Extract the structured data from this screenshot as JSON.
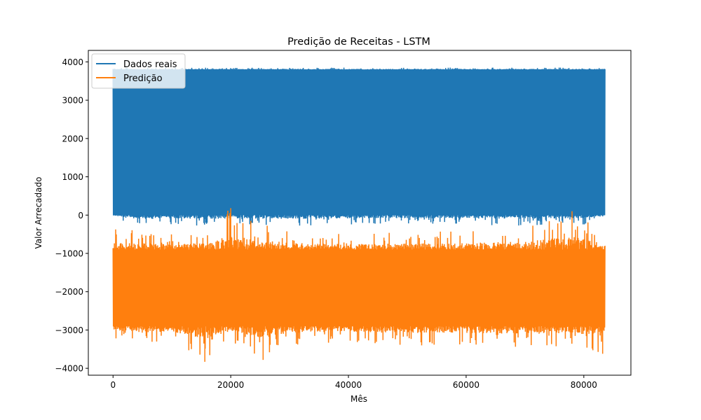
{
  "chart_data": {
    "type": "line",
    "title": "Predição de Receitas - LSTM",
    "xlabel": "Mês",
    "ylabel": "Valor Arrecadado",
    "xlim": [
      -4200,
      88000
    ],
    "ylim": [
      -4180,
      4300
    ],
    "x_ticks": [
      0,
      20000,
      40000,
      60000,
      80000
    ],
    "x_tick_labels": [
      "0",
      "20000",
      "40000",
      "60000",
      "80000"
    ],
    "y_ticks": [
      4000,
      3000,
      2000,
      1000,
      0,
      -1000,
      -2000,
      -3000,
      -4000
    ],
    "y_tick_labels": [
      "4000",
      "3000",
      "2000",
      "1000",
      "0",
      "−1000",
      "−2000",
      "−3000",
      "−4000"
    ],
    "grid": false,
    "legend_position": "top-left",
    "x_range": [
      0,
      83600
    ],
    "series": [
      {
        "name": "Dados reais",
        "color": "#1f77b4",
        "band": [
          0,
          3800
        ],
        "envelope": [
          [
            0,
            -20,
            3850
          ],
          [
            2000,
            -200,
            3850
          ],
          [
            6000,
            -300,
            3850
          ],
          [
            10000,
            -250,
            3850
          ],
          [
            15000,
            -300,
            3850
          ],
          [
            20000,
            -250,
            3850
          ],
          [
            30000,
            -280,
            3850
          ],
          [
            40000,
            -250,
            3850
          ],
          [
            50000,
            -230,
            3850
          ],
          [
            60000,
            -250,
            3850
          ],
          [
            70000,
            -280,
            3850
          ],
          [
            80000,
            -250,
            3850
          ],
          [
            83600,
            -20,
            3850
          ]
        ],
        "notable_points": [
          [
            5800,
            1450
          ],
          [
            15800,
            2300
          ],
          [
            25600,
            2150
          ],
          [
            36700,
            1800
          ],
          [
            44700,
            2450
          ]
        ]
      },
      {
        "name": "Predição",
        "color": "#ff7f0e",
        "band": [
          -2900,
          -900
        ],
        "envelope": [
          [
            0,
            -3200,
            -350
          ],
          [
            5000,
            -3400,
            -400
          ],
          [
            10000,
            -3300,
            -500
          ],
          [
            15600,
            -3850,
            -400
          ],
          [
            20000,
            -3300,
            180
          ],
          [
            25500,
            -3780,
            -200
          ],
          [
            30000,
            -3400,
            -400
          ],
          [
            40000,
            -3300,
            -500
          ],
          [
            50000,
            -3450,
            -400
          ],
          [
            60000,
            -3400,
            -400
          ],
          [
            70000,
            -3500,
            -300
          ],
          [
            78000,
            -3400,
            100
          ],
          [
            83600,
            -3650,
            -500
          ]
        ],
        "notable_points": [
          [
            15600,
            -3830
          ],
          [
            20000,
            180
          ],
          [
            25500,
            -3780
          ],
          [
            78000,
            100
          ],
          [
            83200,
            -3620
          ]
        ]
      }
    ]
  }
}
